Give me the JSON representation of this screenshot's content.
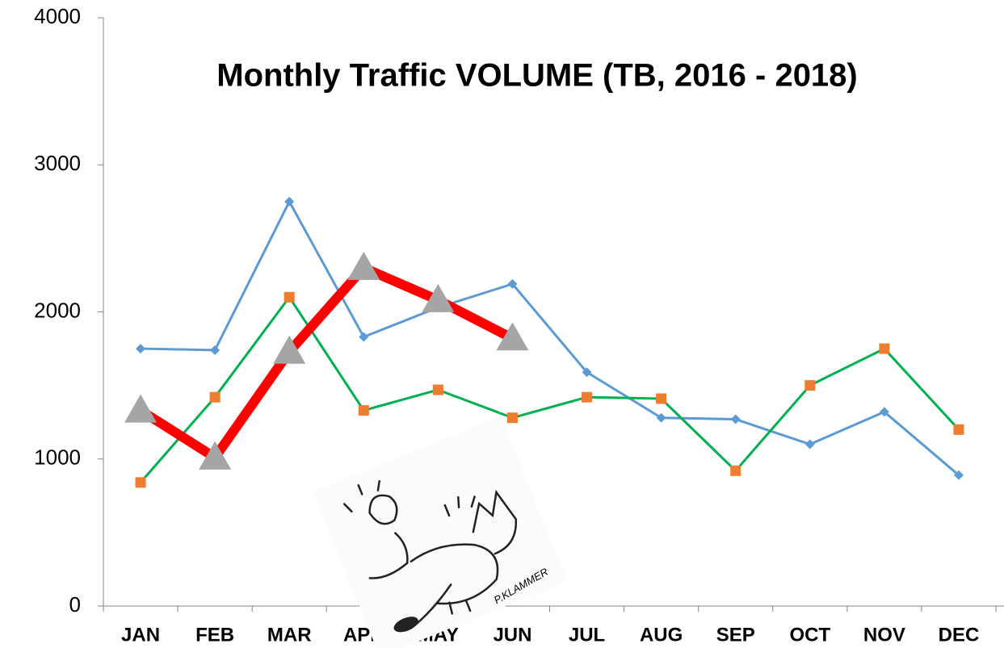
{
  "chart_data": {
    "type": "line",
    "title": "Monthly Traffic VOLUME (TB, 2016 - 2018)",
    "categories": [
      "JAN",
      "FEB",
      "MAR",
      "APR",
      "MAY",
      "JUN",
      "JUL",
      "AUG",
      "SEP",
      "OCT",
      "NOV",
      "DEC"
    ],
    "series": [
      {
        "color": "#5b9bd5",
        "marker": "diamond",
        "marker_color": "#5b9bd5",
        "line_width": 3,
        "values": [
          1750,
          1740,
          2750,
          1830,
          2030,
          2190,
          1590,
          1280,
          1270,
          1100,
          1320,
          890
        ]
      },
      {
        "color": "#00b050",
        "marker": "square",
        "marker_color": "#ed7d31",
        "line_width": 3,
        "values": [
          840,
          1420,
          2100,
          1330,
          1470,
          1280,
          1420,
          1410,
          920,
          1500,
          1750,
          1200
        ]
      },
      {
        "color": "#ff0000",
        "marker": "triangle",
        "marker_color": "#a5a5a5",
        "line_width": 12,
        "values": [
          1330,
          1010,
          1730,
          2300,
          2080,
          1820,
          null,
          null,
          null,
          null,
          null,
          null
        ]
      }
    ],
    "ylim": [
      0,
      4000
    ],
    "yticks": [
      0,
      1000,
      2000,
      3000,
      4000
    ],
    "grid": false
  },
  "image": {
    "signature": "P.KLAMMER"
  }
}
